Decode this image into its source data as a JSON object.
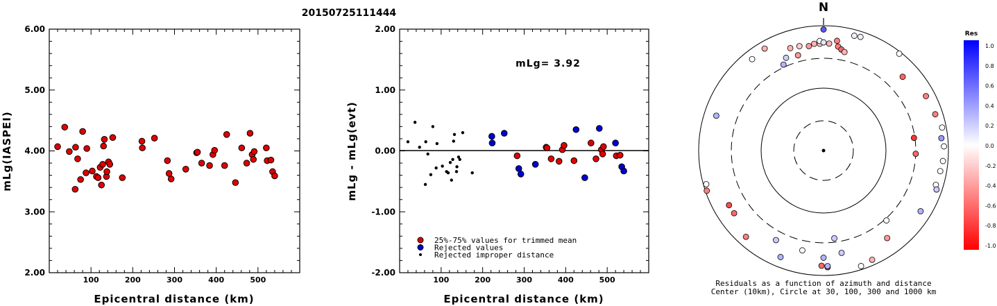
{
  "page_title": "20150725111444",
  "chart_data": [
    {
      "type": "scatter",
      "ylabel": "mLg(IASPEI)",
      "xlabel": "Epicentral distance (km)",
      "xlim": [
        0,
        600
      ],
      "ylim": [
        2.0,
        6.0
      ],
      "xticks": [
        "100",
        "200",
        "300",
        "400",
        "500"
      ],
      "yticks": [
        "2.00",
        "3.00",
        "4.00",
        "5.00",
        "6.00"
      ],
      "series": [
        {
          "color": "#e00000",
          "points": [
            [
              20,
              4.07
            ],
            [
              37,
              4.39
            ],
            [
              48,
              3.99
            ],
            [
              62,
              3.37
            ],
            [
              63,
              4.06
            ],
            [
              68,
              3.87
            ],
            [
              75,
              3.53
            ],
            [
              80,
              4.32
            ],
            [
              88,
              3.64
            ],
            [
              90,
              4.04
            ],
            [
              103,
              3.67
            ],
            [
              113,
              3.58
            ],
            [
              117,
              3.56
            ],
            [
              122,
              3.73
            ],
            [
              125,
              3.44
            ],
            [
              128,
              3.78
            ],
            [
              130,
              4.08
            ],
            [
              132,
              4.19
            ],
            [
              137,
              3.58
            ],
            [
              138,
              3.66
            ],
            [
              142,
              3.82
            ],
            [
              145,
              3.78
            ],
            [
              152,
              4.22
            ],
            [
              175,
              3.56
            ],
            [
              222,
              4.16
            ],
            [
              223,
              4.05
            ],
            [
              252,
              4.21
            ],
            [
              283,
              3.84
            ],
            [
              287,
              3.63
            ],
            [
              292,
              3.54
            ],
            [
              327,
              3.7
            ],
            [
              353,
              3.97
            ],
            [
              355,
              3.98
            ],
            [
              365,
              3.8
            ],
            [
              384,
              3.76
            ],
            [
              392,
              3.94
            ],
            [
              396,
              4.01
            ],
            [
              420,
              3.76
            ],
            [
              425,
              4.27
            ],
            [
              446,
              3.48
            ],
            [
              461,
              4.05
            ],
            [
              473,
              3.8
            ],
            [
              481,
              4.29
            ],
            [
              486,
              3.94
            ],
            [
              489,
              3.86
            ],
            [
              491,
              3.99
            ],
            [
              520,
              4.05
            ],
            [
              522,
              3.84
            ],
            [
              531,
              3.85
            ],
            [
              535,
              3.66
            ],
            [
              540,
              3.59
            ]
          ]
        }
      ]
    },
    {
      "type": "scatter",
      "ylabel": "mLg - mLg(evt)",
      "xlabel": "Epicentral distance (km)",
      "xlim": [
        0,
        600
      ],
      "ylim": [
        -2.0,
        2.0
      ],
      "xticks": [
        "100",
        "200",
        "300",
        "400",
        "500"
      ],
      "yticks": [
        "-2.00",
        "-1.00",
        "0.00",
        "1.00",
        "2.00"
      ],
      "annotation": "mLg= 3.92",
      "zero_line": true,
      "series": [
        {
          "name": "25%-75% values for trimmed mean",
          "color": "#e00000",
          "points": [
            [
              283,
              -0.08
            ],
            [
              353,
              0.06
            ],
            [
              355,
              0.05
            ],
            [
              365,
              -0.13
            ],
            [
              384,
              -0.17
            ],
            [
              392,
              0.02
            ],
            [
              396,
              0.09
            ],
            [
              420,
              -0.16
            ],
            [
              461,
              0.13
            ],
            [
              473,
              -0.13
            ],
            [
              486,
              0.02
            ],
            [
              489,
              -0.05
            ],
            [
              491,
              0.07
            ],
            [
              522,
              -0.08
            ],
            [
              531,
              -0.07
            ]
          ]
        },
        {
          "name": "Rejected values",
          "color": "#0000d0",
          "points": [
            [
              222,
              0.24
            ],
            [
              223,
              0.13
            ],
            [
              252,
              0.29
            ],
            [
              287,
              -0.29
            ],
            [
              292,
              -0.38
            ],
            [
              327,
              -0.22
            ],
            [
              425,
              0.35
            ],
            [
              446,
              -0.44
            ],
            [
              481,
              0.37
            ],
            [
              520,
              0.13
            ],
            [
              535,
              -0.26
            ],
            [
              540,
              -0.33
            ]
          ]
        },
        {
          "name": "Rejected improper distance",
          "color": "#000000",
          "points": [
            [
              20,
              0.15
            ],
            [
              37,
              0.47
            ],
            [
              48,
              0.06
            ],
            [
              62,
              -0.55
            ],
            [
              63,
              0.15
            ],
            [
              68,
              -0.05
            ],
            [
              75,
              -0.39
            ],
            [
              80,
              0.4
            ],
            [
              88,
              -0.28
            ],
            [
              90,
              0.12
            ],
            [
              103,
              -0.25
            ],
            [
              113,
              -0.34
            ],
            [
              117,
              -0.36
            ],
            [
              122,
              -0.19
            ],
            [
              125,
              -0.48
            ],
            [
              128,
              -0.14
            ],
            [
              130,
              0.16
            ],
            [
              132,
              0.27
            ],
            [
              137,
              -0.34
            ],
            [
              138,
              -0.26
            ],
            [
              142,
              -0.1
            ],
            [
              145,
              -0.14
            ],
            [
              152,
              0.3
            ],
            [
              175,
              -0.36
            ]
          ]
        }
      ]
    },
    {
      "type": "polar-scatter",
      "north_label": "N",
      "caption_line1": "Residuals as a function of azimuth and distance",
      "caption_line2": "Center (10km), Circle at 30, 100, 300 and 1000 km",
      "rings_km": [
        30,
        100,
        300,
        1000
      ],
      "points": [
        {
          "az": 0,
          "dist": 870,
          "res": 0.65
        },
        {
          "az": 15,
          "dist": 800,
          "res": 0.05
        },
        {
          "az": 18,
          "dist": 820,
          "res": 0.05
        },
        {
          "az": 38,
          "dist": 930,
          "res": 0.0
        },
        {
          "az": 330,
          "dist": 770,
          "res": -0.3
        },
        {
          "az": 322,
          "dist": 720,
          "res": 0.0
        },
        {
          "az": 355,
          "dist": 520,
          "res": -0.3
        },
        {
          "az": 358,
          "dist": 515,
          "res": -0.2
        },
        {
          "az": 3,
          "dist": 520,
          "res": -0.3
        },
        {
          "az": 352,
          "dist": 490,
          "res": -0.4
        },
        {
          "az": 347,
          "dist": 520,
          "res": -0.2
        },
        {
          "az": 342,
          "dist": 530,
          "res": -0.3
        },
        {
          "az": 8,
          "dist": 480,
          "res": -0.5
        },
        {
          "az": 10,
          "dist": 440,
          "res": -0.6
        },
        {
          "az": 12,
          "dist": 410,
          "res": -0.3
        },
        {
          "az": 345,
          "dist": 380,
          "res": -0.4
        },
        {
          "az": 338,
          "dist": 400,
          "res": 0.2
        },
        {
          "az": 335,
          "dist": 330,
          "res": 0.3
        },
        {
          "az": 358,
          "dist": 570,
          "res": 0.0
        },
        {
          "az": 0,
          "dist": 540,
          "res": 0.1
        },
        {
          "az": 7,
          "dist": 590,
          "res": -0.5
        },
        {
          "az": 47,
          "dist": 540,
          "res": -0.6
        },
        {
          "az": 62,
          "dist": 720,
          "res": -0.5
        },
        {
          "az": 72,
          "dist": 760,
          "res": -0.5
        },
        {
          "az": 79,
          "dist": 860,
          "res": 0.0
        },
        {
          "az": 84,
          "dist": 790,
          "res": 0.4
        },
        {
          "az": 88,
          "dist": 850,
          "res": 0.0
        },
        {
          "az": 82,
          "dist": 290,
          "res": -0.8
        },
        {
          "az": 92,
          "dist": 300,
          "res": -0.6
        },
        {
          "az": 95,
          "dist": 830,
          "res": 0.0
        },
        {
          "az": 100,
          "dist": 790,
          "res": 0.0
        },
        {
          "az": 107,
          "dist": 760,
          "res": 0.0
        },
        {
          "az": 109,
          "dist": 820,
          "res": 0.2
        },
        {
          "az": 122,
          "dist": 680,
          "res": 0.3
        },
        {
          "az": 138,
          "dist": 320,
          "res": 0.0
        },
        {
          "az": 144,
          "dist": 540,
          "res": -0.4
        },
        {
          "az": 173,
          "dist": 260,
          "res": 0.2
        },
        {
          "az": 170,
          "dist": 460,
          "res": 0.2
        },
        {
          "az": 180,
          "dist": 520,
          "res": 0.3
        },
        {
          "az": 192,
          "dist": 430,
          "res": 0.0
        },
        {
          "az": 208,
          "dist": 420,
          "res": 0.2
        },
        {
          "az": 202,
          "dist": 690,
          "res": 0.3
        },
        {
          "az": 178,
          "dist": 740,
          "res": -0.7
        },
        {
          "az": 181,
          "dist": 700,
          "res": -0.6
        },
        {
          "az": 178,
          "dist": 710,
          "res": 0.3
        },
        {
          "az": 162,
          "dist": 880,
          "res": 0.0
        },
        {
          "az": 156,
          "dist": 820,
          "res": -0.3
        },
        {
          "az": 222,
          "dist": 720,
          "res": -0.5
        },
        {
          "az": 235,
          "dist": 560,
          "res": -0.6
        },
        {
          "az": 240,
          "dist": 560,
          "res": -0.7
        },
        {
          "az": 288,
          "dist": 640,
          "res": 0.3
        },
        {
          "az": 254,
          "dist": 900,
          "res": 0.0
        },
        {
          "az": 251,
          "dist": 950,
          "res": -0.5
        }
      ]
    }
  ],
  "colorbar": {
    "title": "Res",
    "ticks": [
      "1.0",
      "0.8",
      "0.6",
      "0.4",
      "0.2",
      "0.0",
      "-0.2",
      "-0.4",
      "-0.6",
      "-0.8",
      "-1.0"
    ]
  }
}
